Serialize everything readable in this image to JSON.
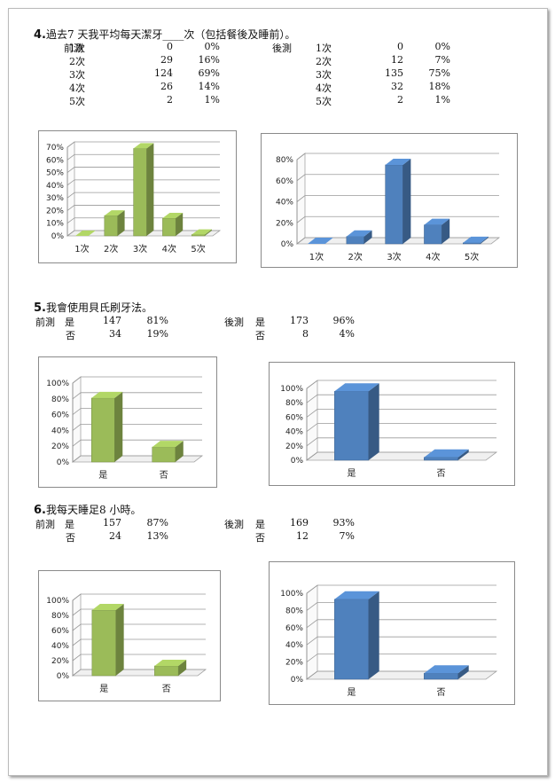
{
  "sections": [
    {
      "number": "4.",
      "title": "過去7 天我平均每天潔牙____次（包括餐後及睡前）。",
      "pre_label": "前測",
      "post_label": "後測",
      "pre_rows": [
        {
          "label": "1次",
          "count": "0",
          "pct": "0%"
        },
        {
          "label": "2次",
          "count": "29",
          "pct": "16%"
        },
        {
          "label": "3次",
          "count": "124",
          "pct": "69%"
        },
        {
          "label": "4次",
          "count": "26",
          "pct": "14%"
        },
        {
          "label": "5次",
          "count": "2",
          "pct": "1%"
        }
      ],
      "post_rows": [
        {
          "label": "1次",
          "count": "0",
          "pct": "0%"
        },
        {
          "label": "2次",
          "count": "12",
          "pct": "7%"
        },
        {
          "label": "3次",
          "count": "135",
          "pct": "75%"
        },
        {
          "label": "4次",
          "count": "32",
          "pct": "18%"
        },
        {
          "label": "5次",
          "count": "2",
          "pct": "1%"
        }
      ]
    },
    {
      "number": "5.",
      "title": "我會使用貝氏刷牙法。",
      "pre_label": "前測",
      "post_label": "後測",
      "pre_rows": [
        {
          "label": "是",
          "count": "147",
          "pct": "81%"
        },
        {
          "label": "否",
          "count": "34",
          "pct": "19%"
        }
      ],
      "post_rows": [
        {
          "label": "是",
          "count": "173",
          "pct": "96%"
        },
        {
          "label": "否",
          "count": "8",
          "pct": "4%"
        }
      ]
    },
    {
      "number": "6.",
      "title": "我每天睡足8 小時。",
      "pre_label": "前測",
      "post_label": "後測",
      "pre_rows": [
        {
          "label": "是",
          "count": "157",
          "pct": "87%"
        },
        {
          "label": "否",
          "count": "24",
          "pct": "13%"
        }
      ],
      "post_rows": [
        {
          "label": "是",
          "count": "169",
          "pct": "93%"
        },
        {
          "label": "否",
          "count": "12",
          "pct": "7%"
        }
      ]
    }
  ],
  "chart_data": [
    {
      "type": "bar",
      "categories": [
        "1次",
        "2次",
        "3次",
        "4次",
        "5次"
      ],
      "values": [
        0,
        16,
        69,
        14,
        1
      ],
      "ylim": [
        0,
        70
      ],
      "yticks": [
        "0%",
        "10%",
        "20%",
        "30%",
        "40%",
        "50%",
        "60%",
        "70%"
      ],
      "color": "#9bbb59",
      "grid": true
    },
    {
      "type": "bar",
      "categories": [
        "1次",
        "2次",
        "3次",
        "4次",
        "5次"
      ],
      "values": [
        0,
        7,
        75,
        18,
        1
      ],
      "ylim": [
        0,
        80
      ],
      "yticks": [
        "0%",
        "20%",
        "40%",
        "60%",
        "80%"
      ],
      "color": "#4f81bd",
      "grid": true
    },
    {
      "type": "bar",
      "categories": [
        "是",
        "否"
      ],
      "values": [
        81,
        19
      ],
      "ylim": [
        0,
        100
      ],
      "yticks": [
        "0%",
        "20%",
        "40%",
        "60%",
        "80%",
        "100%"
      ],
      "color": "#9bbb59",
      "grid": true
    },
    {
      "type": "bar",
      "categories": [
        "是",
        "否"
      ],
      "values": [
        96,
        4
      ],
      "ylim": [
        0,
        100
      ],
      "yticks": [
        "0%",
        "20%",
        "40%",
        "60%",
        "80%",
        "100%"
      ],
      "color": "#4f81bd",
      "grid": true
    },
    {
      "type": "bar",
      "categories": [
        "是",
        "否"
      ],
      "values": [
        87,
        13
      ],
      "ylim": [
        0,
        100
      ],
      "yticks": [
        "0%",
        "20%",
        "40%",
        "60%",
        "80%",
        "100%"
      ],
      "color": "#9bbb59",
      "grid": true
    },
    {
      "type": "bar",
      "categories": [
        "是",
        "否"
      ],
      "values": [
        93,
        7
      ],
      "ylim": [
        0,
        100
      ],
      "yticks": [
        "0%",
        "20%",
        "40%",
        "60%",
        "80%",
        "100%"
      ],
      "color": "#4f81bd",
      "grid": true
    }
  ]
}
